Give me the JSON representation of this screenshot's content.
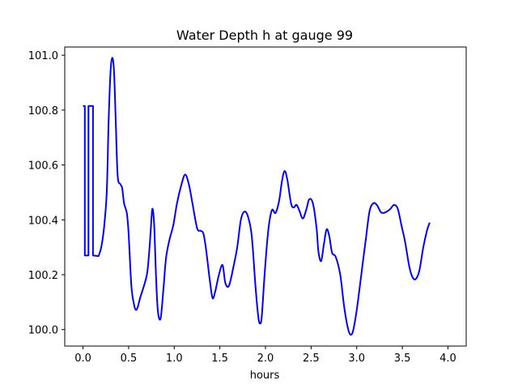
{
  "chart_data": {
    "type": "line",
    "title": "Water Depth h at gauge 99",
    "xlabel": "hours",
    "ylabel": "",
    "xlim": [
      -0.2,
      4.2
    ],
    "ylim": [
      99.94,
      101.03
    ],
    "xticks": [
      0.0,
      0.5,
      1.0,
      1.5,
      2.0,
      2.5,
      3.0,
      3.5,
      4.0
    ],
    "xtick_labels": [
      "0.0",
      "0.5",
      "1.0",
      "1.5",
      "2.0",
      "2.5",
      "3.0",
      "3.5",
      "4.0"
    ],
    "yticks": [
      100.0,
      100.2,
      100.4,
      100.6,
      100.8,
      101.0
    ],
    "ytick_labels": [
      "100.0",
      "100.2",
      "100.4",
      "100.6",
      "100.8",
      "101.0"
    ],
    "grid": false,
    "legend": "none",
    "series": [
      {
        "color": "#0000ff",
        "points": [
          [
            0.0,
            100.815
          ],
          [
            0.02,
            100.815
          ],
          [
            0.02,
            100.27
          ],
          [
            0.06,
            100.27
          ],
          [
            0.06,
            100.815
          ],
          [
            0.11,
            100.815
          ],
          [
            0.11,
            100.27
          ],
          [
            0.17,
            100.268
          ],
          [
            0.2,
            100.3
          ],
          [
            0.23,
            100.37
          ],
          [
            0.26,
            100.5
          ],
          [
            0.28,
            100.75
          ],
          [
            0.3,
            100.93
          ],
          [
            0.32,
            100.99
          ],
          [
            0.34,
            100.94
          ],
          [
            0.36,
            100.75
          ],
          [
            0.38,
            100.56
          ],
          [
            0.41,
            100.53
          ],
          [
            0.43,
            100.515
          ],
          [
            0.45,
            100.46
          ],
          [
            0.48,
            100.425
          ],
          [
            0.5,
            100.35
          ],
          [
            0.53,
            100.16
          ],
          [
            0.56,
            100.09
          ],
          [
            0.58,
            100.072
          ],
          [
            0.6,
            100.082
          ],
          [
            0.63,
            100.12
          ],
          [
            0.66,
            100.15
          ],
          [
            0.7,
            100.2
          ],
          [
            0.72,
            100.26
          ],
          [
            0.74,
            100.35
          ],
          [
            0.76,
            100.44
          ],
          [
            0.78,
            100.38
          ],
          [
            0.8,
            100.2
          ],
          [
            0.82,
            100.07
          ],
          [
            0.85,
            100.04
          ],
          [
            0.88,
            100.14
          ],
          [
            0.91,
            100.26
          ],
          [
            0.95,
            100.33
          ],
          [
            0.99,
            100.38
          ],
          [
            1.03,
            100.46
          ],
          [
            1.08,
            100.53
          ],
          [
            1.12,
            100.565
          ],
          [
            1.16,
            100.53
          ],
          [
            1.2,
            100.46
          ],
          [
            1.25,
            100.37
          ],
          [
            1.29,
            100.36
          ],
          [
            1.32,
            100.35
          ],
          [
            1.35,
            100.29
          ],
          [
            1.39,
            100.18
          ],
          [
            1.42,
            100.115
          ],
          [
            1.45,
            100.14
          ],
          [
            1.49,
            100.2
          ],
          [
            1.53,
            100.235
          ],
          [
            1.56,
            100.17
          ],
          [
            1.6,
            100.16
          ],
          [
            1.65,
            100.23
          ],
          [
            1.69,
            100.3
          ],
          [
            1.73,
            100.4
          ],
          [
            1.77,
            100.43
          ],
          [
            1.81,
            100.41
          ],
          [
            1.85,
            100.34
          ],
          [
            1.89,
            100.16
          ],
          [
            1.92,
            100.05
          ],
          [
            1.94,
            100.022
          ],
          [
            1.96,
            100.05
          ],
          [
            1.99,
            100.2
          ],
          [
            2.03,
            100.36
          ],
          [
            2.07,
            100.435
          ],
          [
            2.11,
            100.425
          ],
          [
            2.15,
            100.47
          ],
          [
            2.18,
            100.54
          ],
          [
            2.21,
            100.578
          ],
          [
            2.24,
            100.545
          ],
          [
            2.28,
            100.46
          ],
          [
            2.31,
            100.445
          ],
          [
            2.34,
            100.455
          ],
          [
            2.37,
            100.435
          ],
          [
            2.41,
            100.405
          ],
          [
            2.45,
            100.44
          ],
          [
            2.48,
            100.475
          ],
          [
            2.52,
            100.46
          ],
          [
            2.56,
            100.37
          ],
          [
            2.58,
            100.285
          ],
          [
            2.61,
            100.25
          ],
          [
            2.64,
            100.31
          ],
          [
            2.67,
            100.365
          ],
          [
            2.7,
            100.34
          ],
          [
            2.73,
            100.28
          ],
          [
            2.77,
            100.265
          ],
          [
            2.82,
            100.2
          ],
          [
            2.86,
            100.09
          ],
          [
            2.9,
            100.01
          ],
          [
            2.93,
            99.982
          ],
          [
            2.96,
            99.995
          ],
          [
            3.0,
            100.07
          ],
          [
            3.05,
            100.2
          ],
          [
            3.1,
            100.33
          ],
          [
            3.14,
            100.43
          ],
          [
            3.18,
            100.46
          ],
          [
            3.22,
            100.455
          ],
          [
            3.26,
            100.43
          ],
          [
            3.29,
            100.425
          ],
          [
            3.33,
            100.43
          ],
          [
            3.37,
            100.44
          ],
          [
            3.41,
            100.455
          ],
          [
            3.45,
            100.44
          ],
          [
            3.49,
            100.38
          ],
          [
            3.53,
            100.32
          ],
          [
            3.57,
            100.24
          ],
          [
            3.6,
            100.2
          ],
          [
            3.63,
            100.183
          ],
          [
            3.66,
            100.19
          ],
          [
            3.69,
            100.22
          ],
          [
            3.73,
            100.3
          ],
          [
            3.77,
            100.36
          ],
          [
            3.8,
            100.39
          ]
        ]
      }
    ]
  }
}
